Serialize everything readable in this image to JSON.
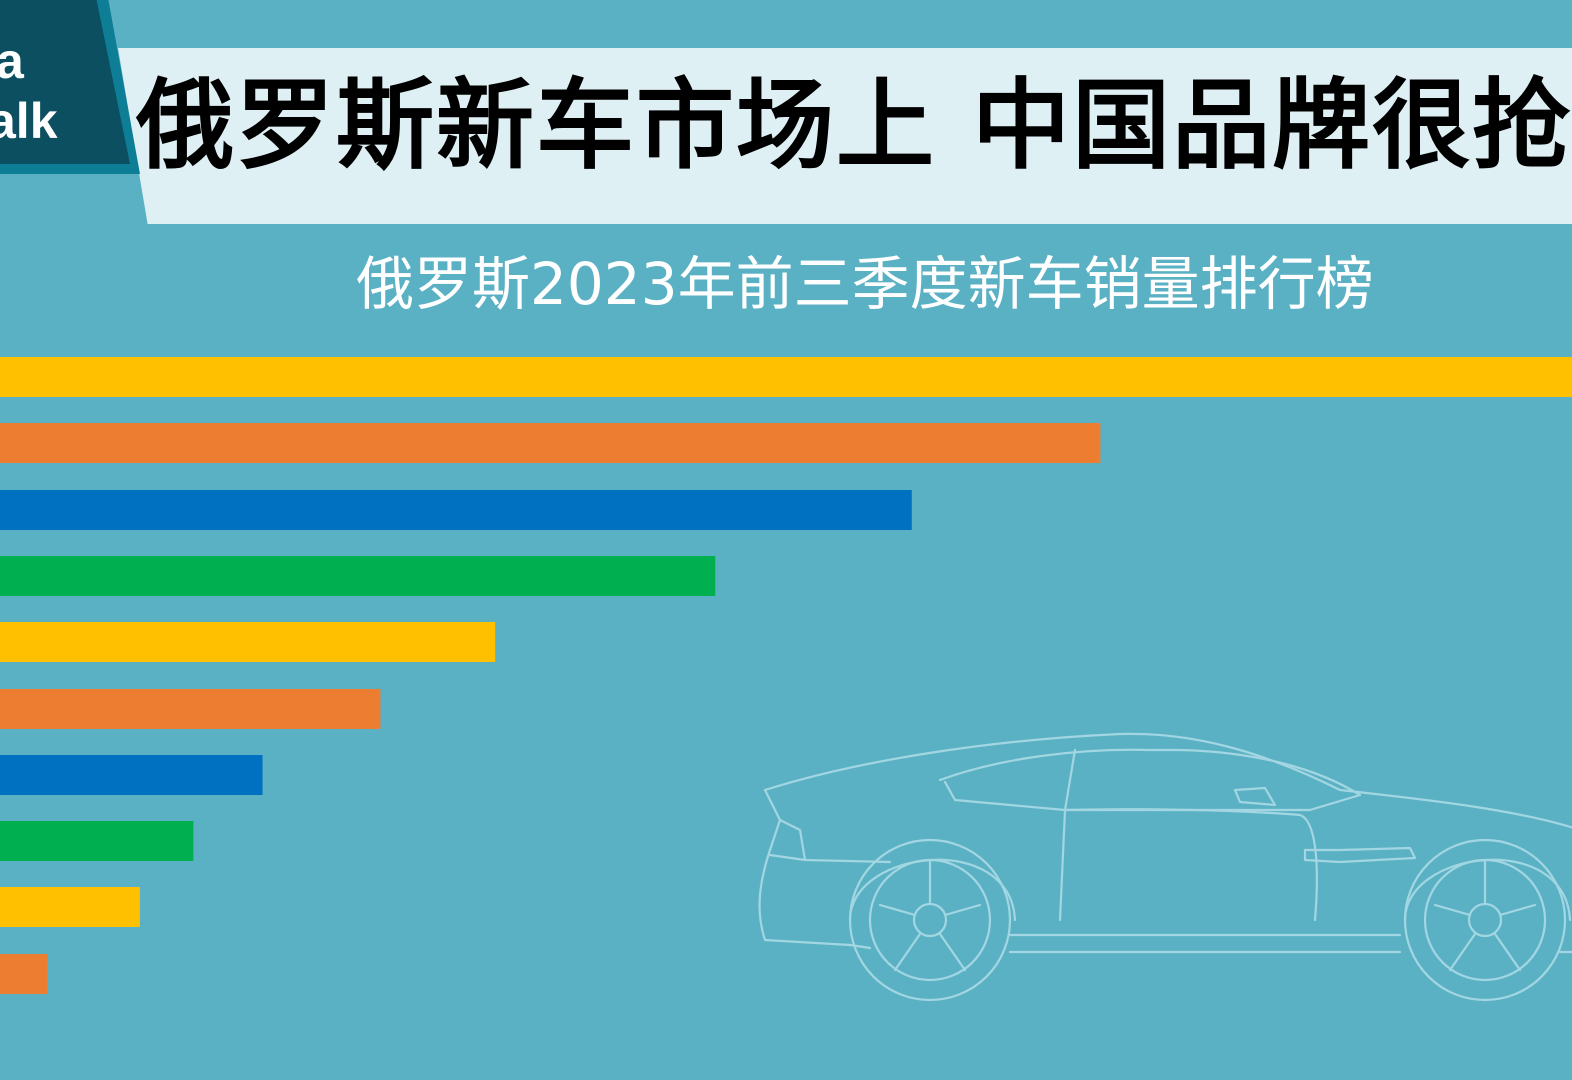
{
  "header": {
    "logo_line1": "a",
    "logo_line2": "alk",
    "title": "俄罗斯新车市场上 中国品牌很抢"
  },
  "chart_data": {
    "type": "bar",
    "orientation": "horizontal",
    "title": "俄罗斯2023年前三季度新车销量排行榜",
    "xlabel": "",
    "ylabel": "",
    "xlim": [
      0,
      100
    ],
    "grid": false,
    "legend": "none",
    "categories": [
      "",
      "",
      "",
      "",
      "",
      "",
      "",
      "",
      "",
      ""
    ],
    "values": [
      100,
      70,
      58,
      45.5,
      31.5,
      24.2,
      16.7,
      12.3,
      8.9,
      3
    ],
    "colors": [
      "#ffc000",
      "#ed7d31",
      "#0070c0",
      "#00b050",
      "#ffc000",
      "#ed7d31",
      "#0070c0",
      "#00b050",
      "#ffc000",
      "#ed7d31"
    ]
  },
  "background": {
    "color": "#5bb1c4",
    "decoration": "car-outline"
  }
}
